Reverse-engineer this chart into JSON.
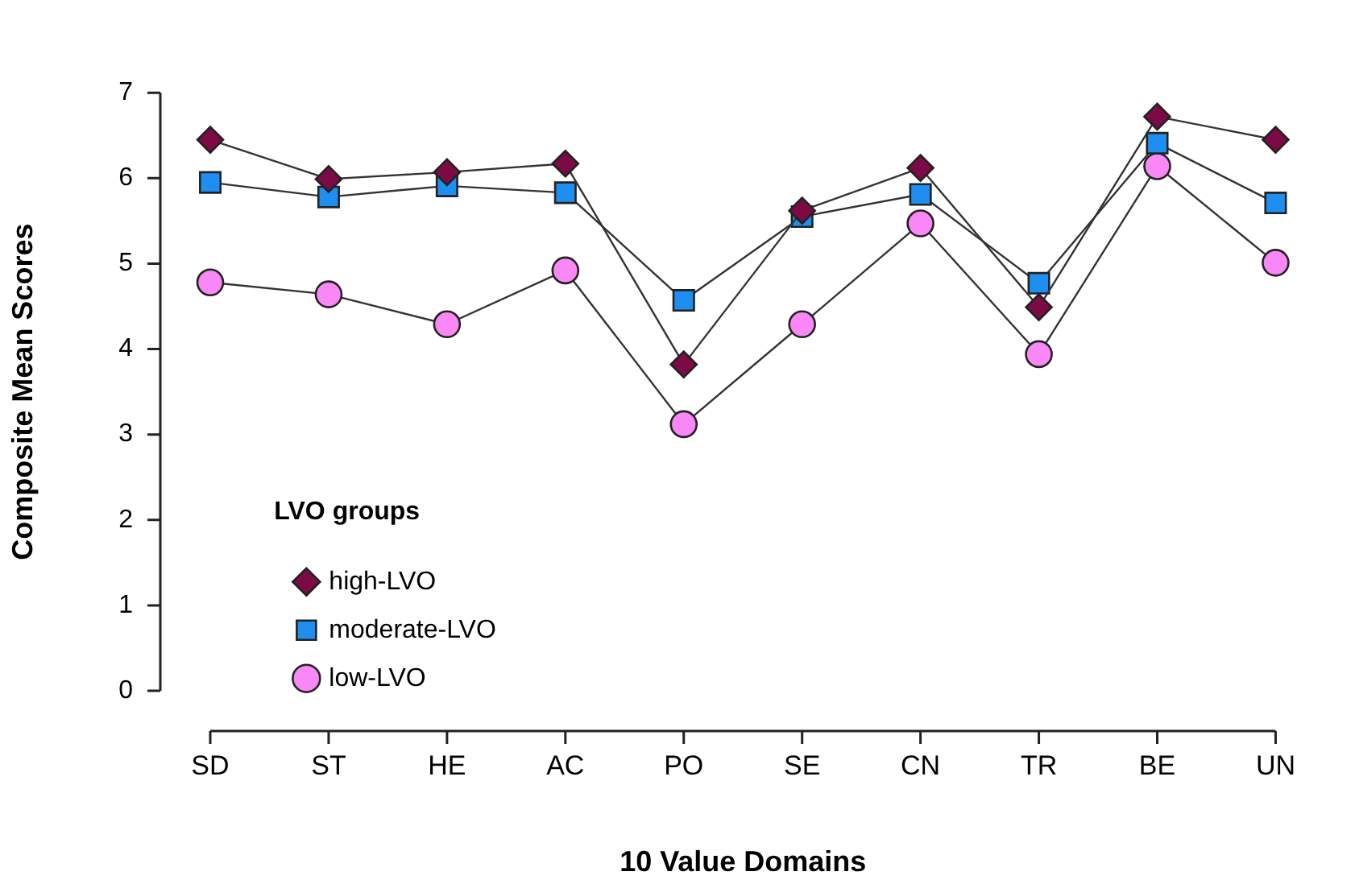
{
  "chart_data": {
    "type": "line",
    "xlabel": "10 Value Domains",
    "ylabel": "Composite Mean Scores",
    "legend_title": "LVO groups",
    "legend": "bottom left",
    "grid": false,
    "categories": [
      "SD",
      "ST",
      "HE",
      "AC",
      "PO",
      "SE",
      "CN",
      "TR",
      "BE",
      "UN"
    ],
    "ylim": [
      0,
      7
    ],
    "yticks": [
      0,
      1,
      2,
      3,
      4,
      5,
      6,
      7
    ],
    "series": [
      {
        "name": "high-LVO",
        "color": "#7b0a45",
        "marker": "diamond",
        "values": [
          6.45,
          5.99,
          6.07,
          6.17,
          3.82,
          5.62,
          6.12,
          4.49,
          6.72,
          6.45
        ]
      },
      {
        "name": "moderate-LVO",
        "color": "#1e8ff0",
        "marker": "square",
        "values": [
          5.95,
          5.78,
          5.91,
          5.83,
          4.57,
          5.55,
          5.81,
          4.77,
          6.41,
          5.71
        ]
      },
      {
        "name": "low-LVO",
        "color": "#f987f5",
        "marker": "circle",
        "values": [
          4.78,
          4.64,
          4.29,
          4.92,
          3.12,
          4.29,
          5.47,
          3.94,
          6.14,
          5.01
        ]
      }
    ]
  }
}
